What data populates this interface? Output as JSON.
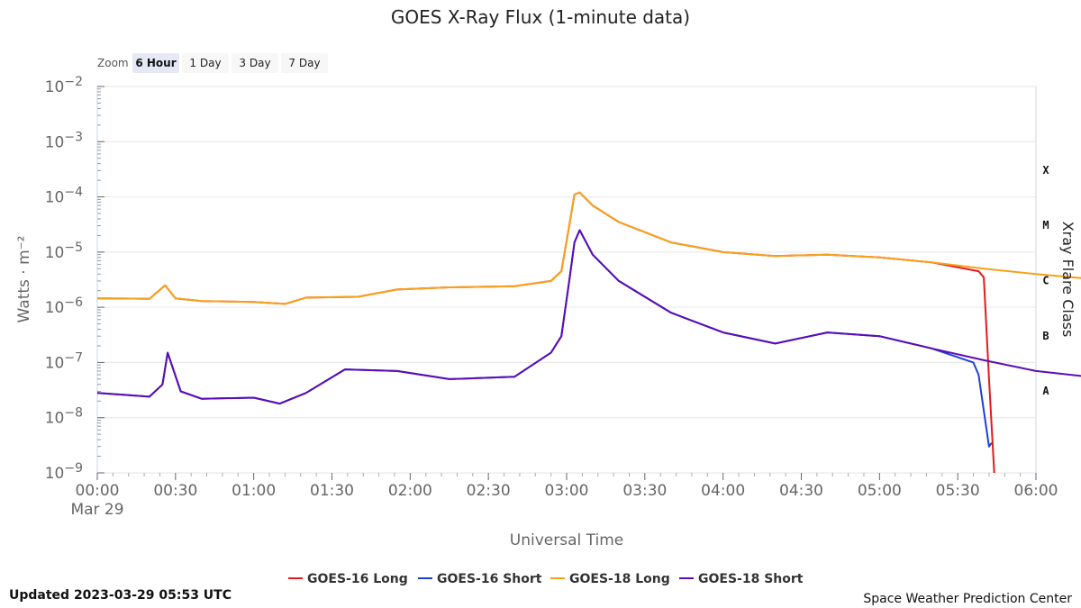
{
  "chart_data": {
    "type": "line",
    "title": "GOES X-Ray Flux (1-minute data)",
    "xlabel": "Universal Time",
    "ylabel": "Watts · m⁻²",
    "ylabel_right": "Xray Flare Class",
    "y_scale": "log",
    "ylim": [
      1e-09,
      0.01
    ],
    "xlim_minutes": [
      0,
      360
    ],
    "x_ticks": [
      "00:00",
      "00:30",
      "01:00",
      "01:30",
      "02:00",
      "02:30",
      "03:00",
      "03:30",
      "04:00",
      "04:30",
      "05:00",
      "05:30",
      "06:00"
    ],
    "x_date_label": "Mar 29",
    "y_ticks": [
      {
        "base": "10",
        "exp": "−2",
        "value": -2
      },
      {
        "base": "10",
        "exp": "−3",
        "value": -3
      },
      {
        "base": "10",
        "exp": "−4",
        "value": -4
      },
      {
        "base": "10",
        "exp": "−5",
        "value": -5
      },
      {
        "base": "10",
        "exp": "−6",
        "value": -6
      },
      {
        "base": "10",
        "exp": "−7",
        "value": -7
      },
      {
        "base": "10",
        "exp": "−8",
        "value": -8
      },
      {
        "base": "10",
        "exp": "−9",
        "value": -9
      }
    ],
    "flare_classes": [
      {
        "label": "X",
        "log_value": -3.5
      },
      {
        "label": "M",
        "log_value": -4.5
      },
      {
        "label": "C",
        "log_value": -5.5
      },
      {
        "label": "B",
        "log_value": -6.5
      },
      {
        "label": "A",
        "log_value": -7.5
      }
    ],
    "grid": true,
    "legend_position": "bottom",
    "series": [
      {
        "name": "GOES-16 Long",
        "color": "#e41a1c",
        "points": [
          [
            0,
            1.45e-06
          ],
          [
            10,
            1.44e-06
          ],
          [
            20,
            1.42e-06
          ],
          [
            26,
            2.5e-06
          ],
          [
            30,
            1.45e-06
          ],
          [
            40,
            1.3e-06
          ],
          [
            60,
            1.25e-06
          ],
          [
            72,
            1.15e-06
          ],
          [
            80,
            1.5e-06
          ],
          [
            100,
            1.55e-06
          ],
          [
            115,
            2.1e-06
          ],
          [
            135,
            2.3e-06
          ],
          [
            160,
            2.4e-06
          ],
          [
            174,
            3e-06
          ],
          [
            178,
            4.5e-06
          ],
          [
            181,
            3e-05
          ],
          [
            183,
            0.00011
          ],
          [
            185,
            0.00012
          ],
          [
            190,
            7e-05
          ],
          [
            200,
            3.5e-05
          ],
          [
            220,
            1.5e-05
          ],
          [
            240,
            1e-05
          ],
          [
            260,
            8.5e-06
          ],
          [
            280,
            9e-06
          ],
          [
            300,
            8e-06
          ],
          [
            320,
            6.5e-06
          ],
          [
            338,
            4.5e-06
          ],
          [
            340,
            3.5e-06
          ],
          [
            342,
            5e-08
          ],
          [
            344,
            1e-09
          ]
        ]
      },
      {
        "name": "GOES-16 Short",
        "color": "#1f3fd9",
        "points": [
          [
            0,
            2.8e-08
          ],
          [
            10,
            2.6e-08
          ],
          [
            20,
            2.4e-08
          ],
          [
            25,
            4e-08
          ],
          [
            27,
            1.5e-07
          ],
          [
            32,
            3e-08
          ],
          [
            40,
            2.2e-08
          ],
          [
            60,
            2.3e-08
          ],
          [
            70,
            1.8e-08
          ],
          [
            80,
            2.8e-08
          ],
          [
            95,
            7.5e-08
          ],
          [
            115,
            7e-08
          ],
          [
            135,
            5e-08
          ],
          [
            160,
            5.5e-08
          ],
          [
            174,
            1.5e-07
          ],
          [
            178,
            3e-07
          ],
          [
            181,
            3e-06
          ],
          [
            183,
            1.5e-05
          ],
          [
            185,
            2.5e-05
          ],
          [
            190,
            9e-06
          ],
          [
            200,
            3e-06
          ],
          [
            220,
            8e-07
          ],
          [
            240,
            3.5e-07
          ],
          [
            260,
            2.2e-07
          ],
          [
            280,
            3.5e-07
          ],
          [
            300,
            3e-07
          ],
          [
            320,
            1.8e-07
          ],
          [
            336,
            1e-07
          ],
          [
            338,
            6e-08
          ],
          [
            342,
            3e-09
          ],
          [
            343,
            3.5e-09
          ]
        ]
      },
      {
        "name": "GOES-18 Long",
        "color": "#f7a21b",
        "points": [
          [
            0,
            1.45e-06
          ],
          [
            10,
            1.44e-06
          ],
          [
            20,
            1.42e-06
          ],
          [
            26,
            2.5e-06
          ],
          [
            30,
            1.45e-06
          ],
          [
            40,
            1.3e-06
          ],
          [
            60,
            1.25e-06
          ],
          [
            72,
            1.15e-06
          ],
          [
            80,
            1.5e-06
          ],
          [
            100,
            1.55e-06
          ],
          [
            115,
            2.1e-06
          ],
          [
            135,
            2.3e-06
          ],
          [
            160,
            2.4e-06
          ],
          [
            174,
            3e-06
          ],
          [
            178,
            4.5e-06
          ],
          [
            181,
            3e-05
          ],
          [
            183,
            0.00011
          ],
          [
            185,
            0.00012
          ],
          [
            190,
            7e-05
          ],
          [
            200,
            3.5e-05
          ],
          [
            220,
            1.5e-05
          ],
          [
            240,
            1e-05
          ],
          [
            260,
            8.5e-06
          ],
          [
            280,
            9e-06
          ],
          [
            300,
            8e-06
          ],
          [
            320,
            6.5e-06
          ],
          [
            340,
            5e-06
          ],
          [
            360,
            4e-06
          ],
          [
            380,
            3.3e-06
          ],
          [
            400,
            3.2e-06
          ],
          [
            420,
            2.7e-06
          ],
          [
            440,
            2.3e-06
          ],
          [
            460,
            2.1e-06
          ],
          [
            470,
            2e-06
          ]
        ]
      },
      {
        "name": "GOES-18 Short",
        "color": "#5a0db5",
        "points": [
          [
            0,
            2.8e-08
          ],
          [
            10,
            2.6e-08
          ],
          [
            20,
            2.4e-08
          ],
          [
            25,
            4e-08
          ],
          [
            27,
            1.5e-07
          ],
          [
            32,
            3e-08
          ],
          [
            40,
            2.2e-08
          ],
          [
            60,
            2.3e-08
          ],
          [
            70,
            1.8e-08
          ],
          [
            80,
            2.8e-08
          ],
          [
            95,
            7.5e-08
          ],
          [
            115,
            7e-08
          ],
          [
            135,
            5e-08
          ],
          [
            160,
            5.5e-08
          ],
          [
            174,
            1.5e-07
          ],
          [
            178,
            3e-07
          ],
          [
            181,
            3e-06
          ],
          [
            183,
            1.5e-05
          ],
          [
            185,
            2.5e-05
          ],
          [
            190,
            9e-06
          ],
          [
            200,
            3e-06
          ],
          [
            220,
            8e-07
          ],
          [
            240,
            3.5e-07
          ],
          [
            260,
            2.2e-07
          ],
          [
            280,
            3.5e-07
          ],
          [
            300,
            3e-07
          ],
          [
            320,
            1.8e-07
          ],
          [
            340,
            1.1e-07
          ],
          [
            360,
            7e-08
          ],
          [
            380,
            5.5e-08
          ],
          [
            400,
            4.5e-08
          ],
          [
            420,
            3.5e-08
          ],
          [
            440,
            3e-08
          ],
          [
            460,
            2.8e-08
          ],
          [
            470,
            2.7e-08
          ]
        ]
      }
    ]
  },
  "zoom": {
    "label": "Zoom",
    "buttons": [
      {
        "label": "6 Hour",
        "active": true
      },
      {
        "label": "1 Day",
        "active": false
      },
      {
        "label": "3 Day",
        "active": false
      },
      {
        "label": "7 Day",
        "active": false
      }
    ]
  },
  "footer": {
    "updated": "Updated 2023-03-29 05:53 UTC",
    "credit": "Space Weather Prediction Center"
  }
}
